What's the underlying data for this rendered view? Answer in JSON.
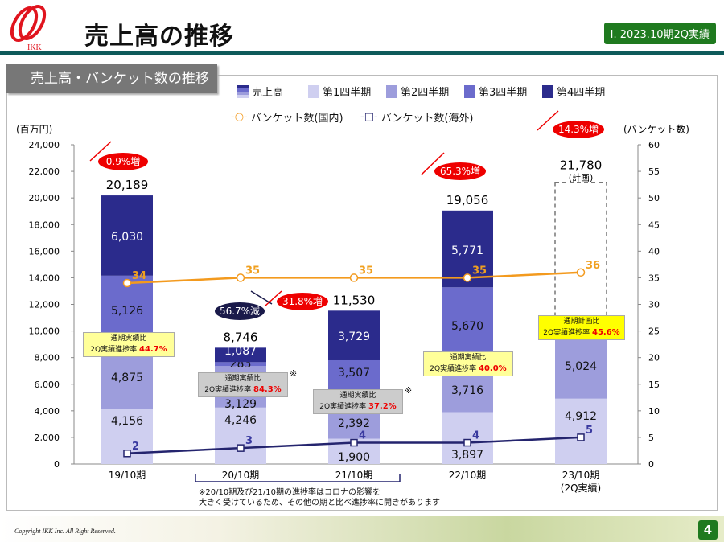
{
  "header": {
    "title": "売上高の推移",
    "section": "Ⅰ. 2023.10期2Q実績",
    "logo_text": "IKK"
  },
  "panel_title": "売上高・バンケット数の推移",
  "legend": {
    "total": "売上高",
    "q1": "第1四半期",
    "q2": "第2四半期",
    "q3": "第3四半期",
    "q4": "第4四半期",
    "domestic": "バンケット数(国内)",
    "overseas": "バンケット数(海外)"
  },
  "chart_data": {
    "type": "bar",
    "categories": [
      "19/10期",
      "20/10期",
      "21/10期",
      "22/10期",
      "23/10期"
    ],
    "category_sub": [
      "",
      "",
      "",
      "",
      "(2Q実績)"
    ],
    "ylabel": "(百万円)",
    "y2label": "(バンケット数)",
    "ylim": [
      0,
      24000
    ],
    "y2lim": [
      0,
      60
    ],
    "yticks": [
      0,
      2000,
      4000,
      6000,
      8000,
      10000,
      12000,
      14000,
      16000,
      18000,
      20000,
      22000,
      24000
    ],
    "y2ticks": [
      0,
      5,
      10,
      15,
      20,
      25,
      30,
      35,
      40,
      45,
      50,
      55,
      60
    ],
    "series": [
      {
        "name": "第1四半期",
        "values": [
          4156,
          4246,
          1900,
          3897,
          4912
        ],
        "color": "#cfcff0"
      },
      {
        "name": "第2四半期",
        "values": [
          4875,
          3129,
          2392,
          3716,
          5024
        ],
        "color": "#9d9ddc"
      },
      {
        "name": "第3四半期",
        "values": [
          5126,
          283,
          3507,
          5670,
          null
        ],
        "color": "#6b6bcc"
      },
      {
        "name": "第4四半期",
        "values": [
          6030,
          1087,
          3729,
          5771,
          null
        ],
        "color": "#2b2b8c"
      }
    ],
    "totals": [
      "20,189",
      "8,746",
      "11,530",
      "19,056",
      "21,780"
    ],
    "plan_label": "(計画)",
    "lines": [
      {
        "name": "バンケット数(国内)",
        "values": [
          34,
          35,
          35,
          35,
          36
        ],
        "color": "#f39a1e"
      },
      {
        "name": "バンケット数(海外)",
        "values": [
          2,
          3,
          4,
          4,
          5
        ],
        "color": "#24246e"
      }
    ],
    "annotations": {
      "changes": [
        "0.9%増",
        "56.7%減",
        "31.8%増",
        "65.3%増",
        "14.3%増"
      ],
      "progress": [
        {
          "label1": "通期実績比",
          "label2": "2Q実績進捗率",
          "value": "44.7%"
        },
        {
          "label1": "通期実績比",
          "label2": "2Q実績進捗率",
          "value": "84.3%"
        },
        {
          "label1": "通期実績比",
          "label2": "2Q実績進捗率",
          "value": "37.2%"
        },
        {
          "label1": "通期実績比",
          "label2": "2Q実績進捗率",
          "value": "40.0%"
        },
        {
          "label1": "通期計画比",
          "label2": "2Q実績進捗率",
          "value": "45.6%"
        }
      ],
      "kome": "※",
      "footnote1": "※20/10期及び21/10期の進捗率はコロナの影響を",
      "footnote2": "大きく受けているため、その他の期と比べ進捗率に開きがあります"
    }
  },
  "footer": {
    "copyright": "Copyright IKK Inc. All Right Reserved.",
    "page": "4"
  }
}
